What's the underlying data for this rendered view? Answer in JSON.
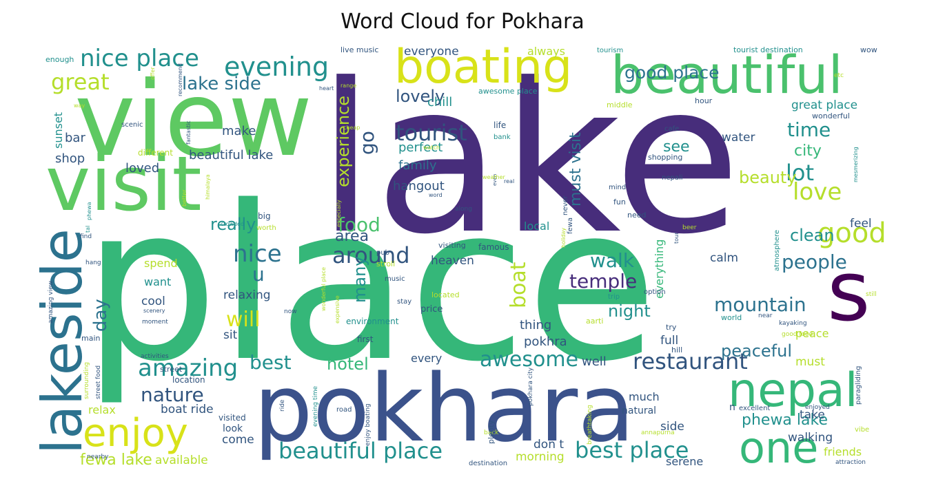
{
  "title": "Word Cloud for Pokhara",
  "palette": {
    "dark_purple": "#472d7b",
    "deep_violet": "#440154",
    "indigo": "#3b528b",
    "navy": "#31547e",
    "slate": "#2c728e",
    "teal": "#21908d",
    "sea_green": "#35b779",
    "green": "#5ec962",
    "lime": "#90d743",
    "yellow": "#d8e219",
    "gold": "#fde725",
    "mint": "#6ece58",
    "soft_green": "#4ac16d",
    "light_yellow": "#b5de2b"
  },
  "words": [
    {
      "text": "place",
      "color": "sea_green"
    },
    {
      "text": "lake",
      "color": "dark_purple"
    },
    {
      "text": "view",
      "color": "green"
    },
    {
      "text": "visit",
      "color": "green"
    },
    {
      "text": "pokhara",
      "color": "indigo"
    },
    {
      "text": "lakeside",
      "color": "slate"
    },
    {
      "text": "beautiful",
      "color": "soft_green"
    },
    {
      "text": "boating",
      "color": "yellow"
    },
    {
      "text": "nepal",
      "color": "sea_green"
    },
    {
      "text": "one",
      "color": "sea_green"
    },
    {
      "text": "s",
      "color": "deep_violet"
    },
    {
      "text": "enjoy",
      "color": "yellow"
    },
    {
      "text": "nice place",
      "color": "teal"
    },
    {
      "text": "evening",
      "color": "teal"
    },
    {
      "text": "great",
      "color": "light_yellow"
    },
    {
      "text": "lake side",
      "color": "slate"
    },
    {
      "text": "good place",
      "color": "slate"
    },
    {
      "text": "tourist",
      "color": "navy"
    },
    {
      "text": "time",
      "color": "teal"
    },
    {
      "text": "lot",
      "color": "teal"
    },
    {
      "text": "love",
      "color": "light_yellow"
    },
    {
      "text": "good",
      "color": "light_yellow"
    },
    {
      "text": "people",
      "color": "slate"
    },
    {
      "text": "walk",
      "color": "teal"
    },
    {
      "text": "temple",
      "color": "dark_purple"
    },
    {
      "text": "mountain",
      "color": "slate"
    },
    {
      "text": "restaurant",
      "color": "navy"
    },
    {
      "text": "amazing",
      "color": "teal"
    },
    {
      "text": "nature",
      "color": "navy"
    },
    {
      "text": "best",
      "color": "teal"
    },
    {
      "text": "best place",
      "color": "teal"
    },
    {
      "text": "beautiful place",
      "color": "teal"
    },
    {
      "text": "awesome",
      "color": "teal"
    },
    {
      "text": "around",
      "color": "navy"
    },
    {
      "text": "nice",
      "color": "slate"
    },
    {
      "text": "u",
      "color": "slate"
    },
    {
      "text": "will",
      "color": "yellow"
    },
    {
      "text": "food",
      "color": "soft_green"
    },
    {
      "text": "boat",
      "color": "light_yellow"
    },
    {
      "text": "beauty",
      "color": "light_yellow"
    },
    {
      "text": "really",
      "color": "teal"
    },
    {
      "text": "clean",
      "color": "teal"
    },
    {
      "text": "peaceful",
      "color": "slate"
    },
    {
      "text": "fewa lake",
      "color": "light_yellow"
    },
    {
      "text": "phewa lake",
      "color": "teal"
    },
    {
      "text": "hotel",
      "color": "sea_green"
    },
    {
      "text": "night",
      "color": "teal"
    },
    {
      "text": "day",
      "color": "slate"
    },
    {
      "text": "lovely",
      "color": "navy"
    },
    {
      "text": "go",
      "color": "navy"
    },
    {
      "text": "see",
      "color": "teal"
    },
    {
      "text": "city",
      "color": "sea_green"
    },
    {
      "text": "experience",
      "color": "light_yellow"
    },
    {
      "text": "must visit",
      "color": "slate"
    },
    {
      "text": "chill",
      "color": "teal"
    },
    {
      "text": "perfect",
      "color": "teal"
    },
    {
      "text": "family",
      "color": "slate"
    },
    {
      "text": "hangout",
      "color": "navy"
    },
    {
      "text": "many",
      "color": "teal"
    },
    {
      "text": "area",
      "color": "navy"
    },
    {
      "text": "beautiful lake",
      "color": "navy"
    },
    {
      "text": "make",
      "color": "navy"
    },
    {
      "text": "bar",
      "color": "navy"
    },
    {
      "text": "shop",
      "color": "navy"
    },
    {
      "text": "loved",
      "color": "navy"
    },
    {
      "text": "sunset",
      "color": "teal"
    },
    {
      "text": "everyone",
      "color": "navy"
    },
    {
      "text": "always",
      "color": "light_yellow"
    },
    {
      "text": "great place",
      "color": "teal"
    },
    {
      "text": "water",
      "color": "navy"
    },
    {
      "text": "feel",
      "color": "navy"
    },
    {
      "text": "local",
      "color": "teal"
    },
    {
      "text": "heaven",
      "color": "navy"
    },
    {
      "text": "spend",
      "color": "light_yellow"
    },
    {
      "text": "want",
      "color": "teal"
    },
    {
      "text": "relaxing",
      "color": "navy"
    },
    {
      "text": "cool",
      "color": "navy"
    },
    {
      "text": "sit",
      "color": "navy"
    },
    {
      "text": "thing",
      "color": "navy"
    },
    {
      "text": "pokhra",
      "color": "navy"
    },
    {
      "text": "full",
      "color": "navy"
    },
    {
      "text": "peace",
      "color": "light_yellow"
    },
    {
      "text": "must",
      "color": "light_yellow"
    },
    {
      "text": "calm",
      "color": "navy"
    },
    {
      "text": "everything",
      "color": "sea_green"
    },
    {
      "text": "well",
      "color": "navy"
    },
    {
      "text": "every",
      "color": "navy"
    },
    {
      "text": "relax",
      "color": "light_yellow"
    },
    {
      "text": "boat ride",
      "color": "navy"
    },
    {
      "text": "come",
      "color": "navy"
    },
    {
      "text": "available",
      "color": "light_yellow"
    },
    {
      "text": "morning",
      "color": "light_yellow"
    },
    {
      "text": "don t",
      "color": "navy"
    },
    {
      "text": "walking",
      "color": "navy"
    },
    {
      "text": "take",
      "color": "navy"
    },
    {
      "text": "friends",
      "color": "light_yellow"
    },
    {
      "text": "serene",
      "color": "navy"
    },
    {
      "text": "much",
      "color": "navy"
    },
    {
      "text": "natural",
      "color": "navy"
    },
    {
      "text": "side",
      "color": "navy"
    },
    {
      "text": "look",
      "color": "navy"
    },
    {
      "text": "visited",
      "color": "navy"
    },
    {
      "text": "live music",
      "color": "navy"
    },
    {
      "text": "tourist destination",
      "color": "teal"
    },
    {
      "text": "wow",
      "color": "navy"
    },
    {
      "text": "tourism",
      "color": "teal"
    },
    {
      "text": "enough",
      "color": "teal"
    },
    {
      "text": "awesome place",
      "color": "teal"
    },
    {
      "text": "hour",
      "color": "navy"
    },
    {
      "text": "wonderful",
      "color": "navy"
    },
    {
      "text": "middle",
      "color": "light_yellow"
    },
    {
      "text": "life",
      "color": "navy"
    },
    {
      "text": "bank",
      "color": "teal"
    },
    {
      "text": "cafe",
      "color": "navy"
    },
    {
      "text": "shopping",
      "color": "navy"
    },
    {
      "text": "nepali",
      "color": "navy"
    },
    {
      "text": "mind",
      "color": "navy"
    },
    {
      "text": "fun",
      "color": "navy"
    },
    {
      "text": "need",
      "color": "navy"
    },
    {
      "text": "location",
      "color": "navy"
    },
    {
      "text": "street",
      "color": "navy"
    },
    {
      "text": "activities",
      "color": "navy"
    },
    {
      "text": "main",
      "color": "navy"
    },
    {
      "text": "big",
      "color": "navy"
    },
    {
      "text": "worth",
      "color": "light_yellow"
    },
    {
      "text": "different",
      "color": "light_yellow"
    },
    {
      "text": "scenic",
      "color": "navy"
    },
    {
      "text": "located",
      "color": "light_yellow"
    },
    {
      "text": "price",
      "color": "navy"
    },
    {
      "text": "environment",
      "color": "teal"
    },
    {
      "text": "first",
      "color": "navy"
    },
    {
      "text": "visiting",
      "color": "navy"
    },
    {
      "text": "famous",
      "color": "navy"
    },
    {
      "text": "pub",
      "color": "navy"
    },
    {
      "text": "stroll",
      "color": "light_yellow"
    },
    {
      "text": "music",
      "color": "navy"
    },
    {
      "text": "stay",
      "color": "navy"
    },
    {
      "text": "trip",
      "color": "teal"
    },
    {
      "text": "option",
      "color": "navy"
    },
    {
      "text": "aarti",
      "color": "light_yellow"
    },
    {
      "text": "world",
      "color": "teal"
    },
    {
      "text": "near",
      "color": "navy"
    },
    {
      "text": "try",
      "color": "navy"
    },
    {
      "text": "hill",
      "color": "navy"
    },
    {
      "text": "kayaking",
      "color": "navy"
    },
    {
      "text": "good food",
      "color": "light_yellow"
    },
    {
      "text": "excellent",
      "color": "navy"
    },
    {
      "text": "enjoyed",
      "color": "navy"
    },
    {
      "text": "road",
      "color": "navy"
    },
    {
      "text": "back",
      "color": "light_yellow"
    },
    {
      "text": "vibe",
      "color": "light_yellow"
    },
    {
      "text": "nearby",
      "color": "navy"
    },
    {
      "text": "attraction",
      "color": "navy"
    },
    {
      "text": "moment",
      "color": "navy"
    },
    {
      "text": "scenery",
      "color": "navy"
    },
    {
      "text": "hang",
      "color": "navy"
    },
    {
      "text": "find",
      "color": "navy"
    },
    {
      "text": "now",
      "color": "navy"
    },
    {
      "text": "still",
      "color": "light_yellow"
    },
    {
      "text": "etc",
      "color": "light_yellow"
    },
    {
      "text": "range",
      "color": "light_yellow"
    },
    {
      "text": "heart",
      "color": "navy"
    },
    {
      "text": "way",
      "color": "light_yellow"
    },
    {
      "text": "offer",
      "color": "light_yellow"
    },
    {
      "text": "cheap",
      "color": "light_yellow"
    },
    {
      "text": "watch",
      "color": "light_yellow"
    },
    {
      "text": "real",
      "color": "navy"
    },
    {
      "text": "word",
      "color": "navy"
    },
    {
      "text": "along",
      "color": "navy"
    },
    {
      "text": "beer",
      "color": "light_yellow"
    },
    {
      "text": "recommend",
      "color": "navy"
    },
    {
      "text": "fantastic",
      "color": "navy"
    },
    {
      "text": "himalaya",
      "color": "light_yellow"
    },
    {
      "text": "better",
      "color": "light_yellow"
    },
    {
      "text": "especially",
      "color": "light_yellow"
    },
    {
      "text": "never",
      "color": "navy"
    },
    {
      "text": "fewa",
      "color": "navy"
    },
    {
      "text": "holiday",
      "color": "light_yellow"
    },
    {
      "text": "even",
      "color": "navy"
    },
    {
      "text": "weather",
      "color": "light_yellow"
    },
    {
      "text": "wonderful place",
      "color": "light_yellow"
    },
    {
      "text": "expensive",
      "color": "light_yellow"
    },
    {
      "text": "crowded",
      "color": "teal"
    },
    {
      "text": "phewa",
      "color": "teal"
    },
    {
      "text": "tal",
      "color": "teal"
    },
    {
      "text": "atmosphere",
      "color": "teal"
    },
    {
      "text": "mesmerizing",
      "color": "teal"
    },
    {
      "text": "tour",
      "color": "navy"
    },
    {
      "text": "amazing view",
      "color": "navy"
    },
    {
      "text": "surrounding",
      "color": "light_yellow"
    },
    {
      "text": "street food",
      "color": "navy"
    },
    {
      "text": "evening time",
      "color": "teal"
    },
    {
      "text": "enjoy boating",
      "color": "navy"
    },
    {
      "text": "ride",
      "color": "navy"
    },
    {
      "text": "destination",
      "color": "navy"
    },
    {
      "text": "plenty",
      "color": "navy"
    },
    {
      "text": "pokhara city",
      "color": "navy"
    },
    {
      "text": "annapurna",
      "color": "light_yellow"
    },
    {
      "text": "breathtaking",
      "color": "light_yellow"
    },
    {
      "text": "paragliding",
      "color": "navy"
    },
    {
      "text": "n",
      "color": "navy"
    }
  ]
}
